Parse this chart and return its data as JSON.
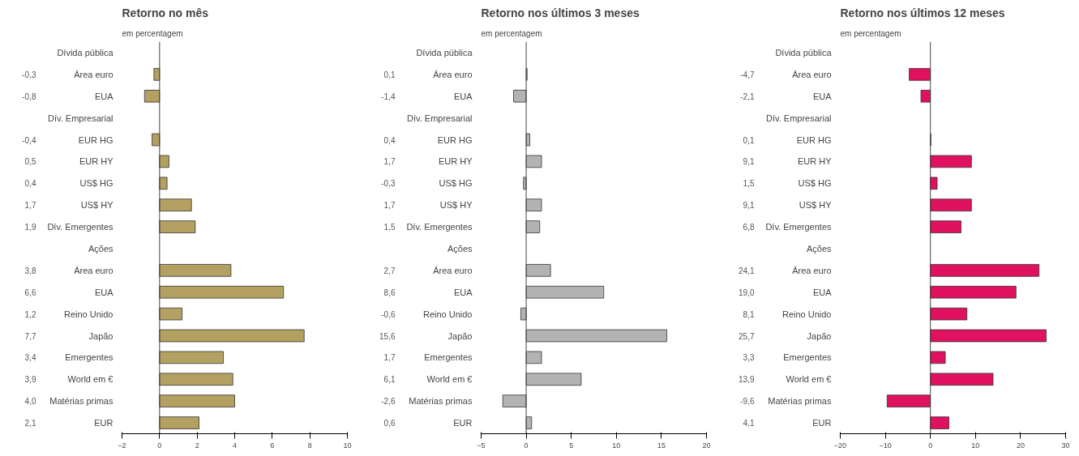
{
  "chart_data": [
    {
      "type": "bar",
      "orientation": "horizontal",
      "title": "Retorno no mês",
      "subtitle": "em percentagem",
      "categories": [
        "Dívida pública",
        "Área euro",
        "EUA",
        "Dív. Empresarial",
        "EUR HG",
        "EUR HY",
        "US$ HG",
        "US$ HY",
        "Dív. Emergentes",
        "Ações",
        "Área euro",
        "EUA",
        "Reino Unido",
        "Japão",
        "Emergentes",
        "World em €",
        "Matérias primas",
        "EUR"
      ],
      "values": [
        null,
        -0.3,
        -0.8,
        null,
        -0.4,
        0.5,
        0.4,
        1.7,
        1.9,
        null,
        3.8,
        6.6,
        1.2,
        7.7,
        3.4,
        3.9,
        4.0,
        2.1
      ],
      "value_labels": [
        null,
        "-0,3",
        "-0,8",
        null,
        "-0,4",
        "0,5",
        "0,4",
        "1,7",
        "1,9",
        null,
        "3,8",
        "6,6",
        "1,2",
        "7,7",
        "3,4",
        "3,9",
        "4,0",
        "2,1"
      ],
      "color": "#b4a060",
      "xlim": [
        -2,
        10
      ],
      "xticks": [
        -2,
        0,
        2,
        4,
        6,
        8,
        10
      ]
    },
    {
      "type": "bar",
      "orientation": "horizontal",
      "title": "Retorno nos últimos 3 meses",
      "subtitle": "em percentagem",
      "categories": [
        "Dívida pública",
        "Área euro",
        "EUA",
        "Dív. Empresarial",
        "EUR HG",
        "EUR HY",
        "US$ HG",
        "US$ HY",
        "Dív. Emergentes",
        "Ações",
        "Área euro",
        "EUA",
        "Reino Unido",
        "Japão",
        "Emergentes",
        "World em €",
        "Matérias primas",
        "EUR"
      ],
      "values": [
        null,
        0.1,
        -1.4,
        null,
        0.4,
        1.7,
        -0.3,
        1.7,
        1.5,
        null,
        2.7,
        8.6,
        -0.6,
        15.6,
        1.7,
        6.1,
        -2.6,
        0.6
      ],
      "value_labels": [
        null,
        "0,1",
        "-1,4",
        null,
        "0,4",
        "1,7",
        "-0,3",
        "1,7",
        "1,5",
        null,
        "2,7",
        "8,6",
        "-0,6",
        "15,6",
        "1,7",
        "6,1",
        "-2,6",
        "0,6"
      ],
      "color": "#b3b3b3",
      "xlim": [
        -5,
        20
      ],
      "xticks": [
        -5,
        0,
        5,
        10,
        15,
        20
      ]
    },
    {
      "type": "bar",
      "orientation": "horizontal",
      "title": "Retorno nos últimos 12 meses",
      "subtitle": "em percentagem",
      "categories": [
        "Dívida pública",
        "Área euro",
        "EUA",
        "Dív. Empresarial",
        "EUR HG",
        "EUR HY",
        "US$ HG",
        "US$ HY",
        "Dív. Emergentes",
        "Ações",
        "Área euro",
        "EUA",
        "Reino Unido",
        "Japão",
        "Emergentes",
        "World em €",
        "Matérias primas",
        "EUR"
      ],
      "values": [
        null,
        -4.7,
        -2.1,
        null,
        0.1,
        9.1,
        1.5,
        9.1,
        6.8,
        null,
        24.1,
        19.0,
        8.1,
        25.7,
        3.3,
        13.9,
        -9.6,
        4.1
      ],
      "value_labels": [
        null,
        "-4,7",
        "-2,1",
        null,
        "0,1",
        "9,1",
        "1,5",
        "9,1",
        "6,8",
        null,
        "24,1",
        "19,0",
        "8,1",
        "25,7",
        "3,3",
        "13,9",
        "-9,6",
        "4,1"
      ],
      "color": "#e0115f",
      "xlim": [
        -20,
        30
      ],
      "xticks": [
        -20,
        -10,
        0,
        10,
        20,
        30
      ]
    }
  ]
}
